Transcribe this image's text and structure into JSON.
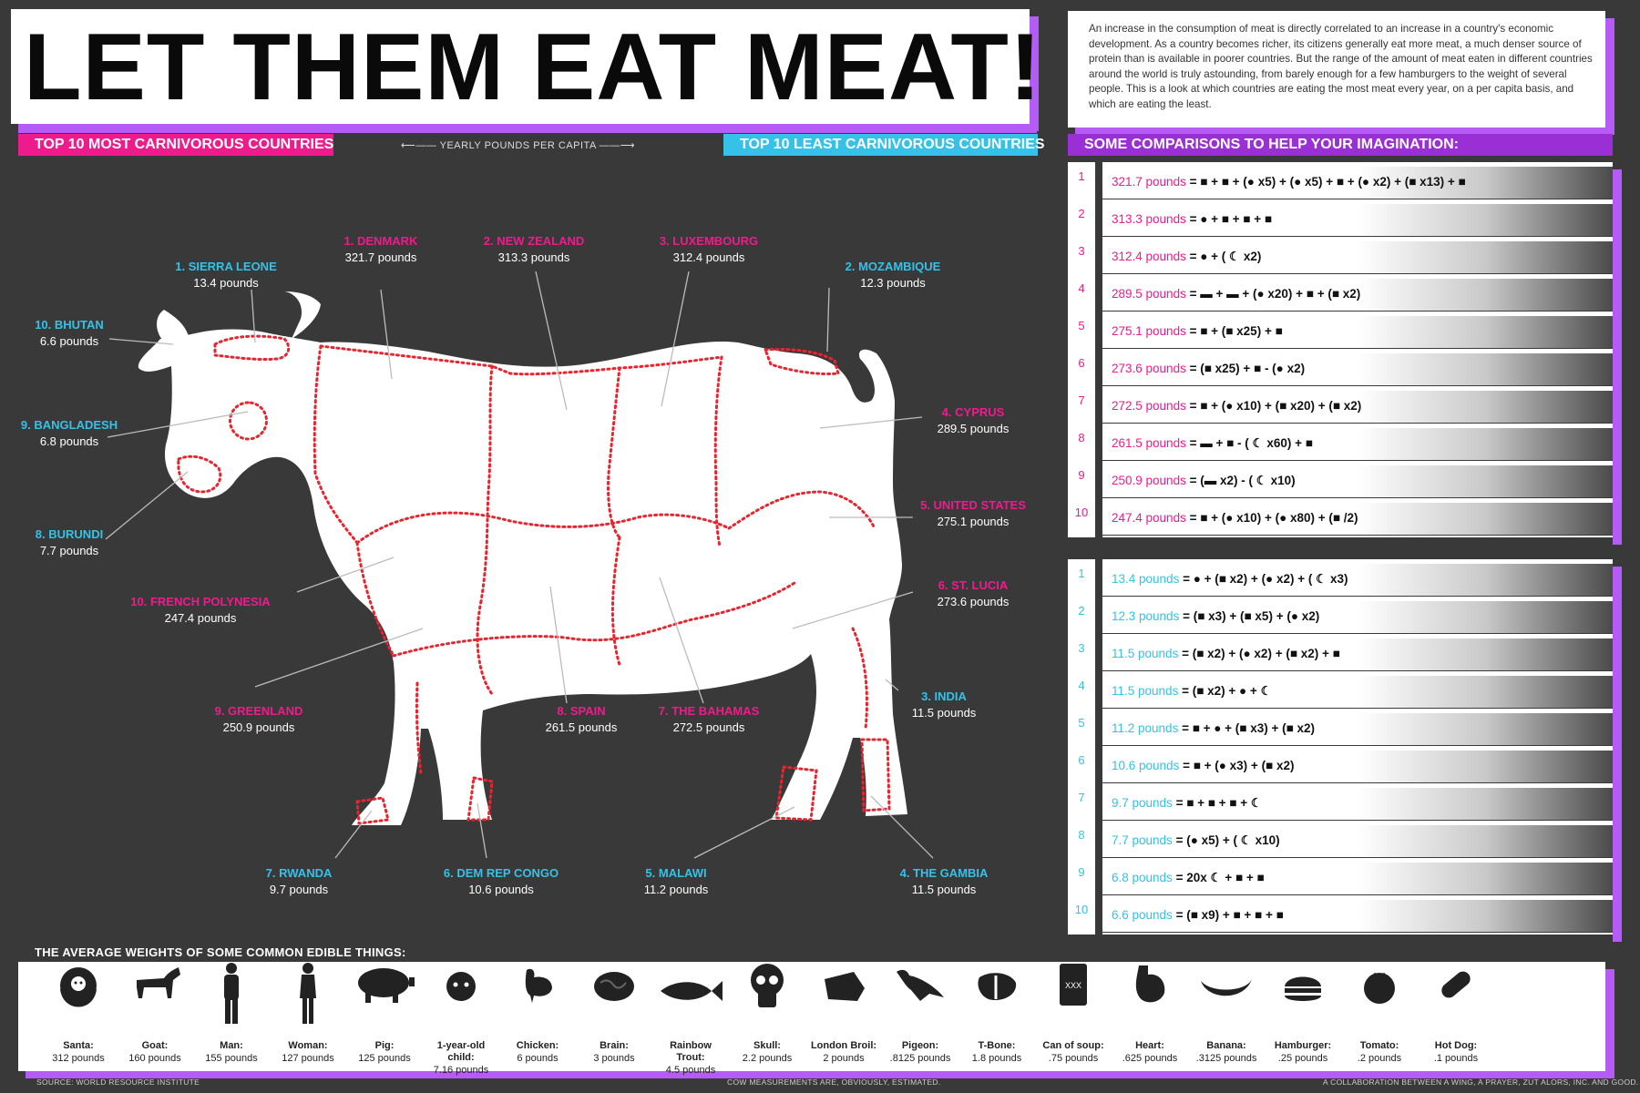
{
  "title": "LET THEM EAT MEAT!",
  "intro": "An increase in the consumption of meat is directly correlated to an increase in a country's economic development. As a country becomes richer, its citizens generally eat more meat, a much denser source of protein than is available in poorer countries. But the range of the amount of meat eaten in different countries around the world is truly astounding, from barely enough for a few hamburgers to the weight of several people. This is a look at which countries are eating the most meat every year, on a per capita basis, and which are eating the least.",
  "tags": {
    "most": "TOP 10 MOST CARNIVOROUS COUNTRIES",
    "yearly": "⟵—— YEARLY POUNDS PER CAPITA ——⟶",
    "least": "TOP 10 LEAST CARNIVOROUS COUNTRIES",
    "comparisons": "SOME COMPARISONS TO HELP YOUR IMAGINATION:"
  },
  "colors": {
    "most": "#ee1b8d",
    "least": "#35c1e8",
    "accent": "#b45cf5",
    "background": "#3a3939"
  },
  "most_carnivorous": [
    {
      "name": "1. DENMARK",
      "value": "321.7 pounds"
    },
    {
      "name": "2. NEW ZEALAND",
      "value": "313.3 pounds"
    },
    {
      "name": "3. LUXEMBOURG",
      "value": "312.4 pounds"
    },
    {
      "name": "4. CYPRUS",
      "value": "289.5 pounds"
    },
    {
      "name": "5. UNITED STATES",
      "value": "275.1 pounds"
    },
    {
      "name": "6. ST. LUCIA",
      "value": "273.6 pounds"
    },
    {
      "name": "7. THE BAHAMAS",
      "value": "272.5 pounds"
    },
    {
      "name": "8. SPAIN",
      "value": "261.5 pounds"
    },
    {
      "name": "9. GREENLAND",
      "value": "250.9 pounds"
    },
    {
      "name": "10. FRENCH POLYNESIA",
      "value": "247.4 pounds"
    }
  ],
  "least_carnivorous": [
    {
      "name": "1. SIERRA LEONE",
      "value": "13.4 pounds"
    },
    {
      "name": "2. MOZAMBIQUE",
      "value": "12.3 pounds"
    },
    {
      "name": "3. INDIA",
      "value": "11.5 pounds"
    },
    {
      "name": "4. THE GAMBIA",
      "value": "11.5 pounds"
    },
    {
      "name": "5. MALAWI",
      "value": "11.2 pounds"
    },
    {
      "name": "6. DEM REP CONGO",
      "value": "10.6 pounds"
    },
    {
      "name": "7. RWANDA",
      "value": "9.7 pounds"
    },
    {
      "name": "8. BURUNDI",
      "value": "7.7 pounds"
    },
    {
      "name": "9. BANGLADESH",
      "value": "6.8 pounds"
    },
    {
      "name": "10. BHUTAN",
      "value": "6.6 pounds"
    }
  ],
  "comparisons_most": [
    {
      "rank": "1",
      "value": "321.7 pounds",
      "formula": "= ■ + ■ + (● x5) + (● x5) + ■ + (● x2) + (■ x13) + ■"
    },
    {
      "rank": "2",
      "value": "313.3 pounds",
      "formula": "= ● + ■ + ■ + ■"
    },
    {
      "rank": "3",
      "value": "312.4 pounds",
      "formula": "= ● + ( ☾ x2)"
    },
    {
      "rank": "4",
      "value": "289.5 pounds",
      "formula": "= ▬ + ▬ + (● x20) + ■ + (■ x2)"
    },
    {
      "rank": "5",
      "value": "275.1 pounds",
      "formula": "= ■ + (■ x25) + ■"
    },
    {
      "rank": "6",
      "value": "273.6 pounds",
      "formula": "= (■ x25) + ■ - (● x2)"
    },
    {
      "rank": "7",
      "value": "272.5 pounds",
      "formula": "= ■ + (● x10) + (■ x20) + (■ x2)"
    },
    {
      "rank": "8",
      "value": "261.5 pounds",
      "formula": "= ▬ + ■ - ( ☾ x60) + ■"
    },
    {
      "rank": "9",
      "value": "250.9 pounds",
      "formula": "= (▬ x2) - ( ☾ x10)"
    },
    {
      "rank": "10",
      "value": "247.4 pounds",
      "formula": "= ■ + (● x10) + (● x80) + (■ /2)"
    }
  ],
  "comparisons_least": [
    {
      "rank": "1",
      "value": "13.4 pounds",
      "formula": "= ● + (■ x2) + (● x2) + ( ☾ x3)"
    },
    {
      "rank": "2",
      "value": "12.3 pounds",
      "formula": "= (■ x3) + (■ x5) + (● x2)"
    },
    {
      "rank": "3",
      "value": "11.5 pounds",
      "formula": "= (■ x2) + (● x2) + (■ x2) + ■"
    },
    {
      "rank": "4",
      "value": "11.5 pounds",
      "formula": "= (■ x2) + ● + ☾"
    },
    {
      "rank": "5",
      "value": "11.2 pounds",
      "formula": "= ■ + ● + (■ x3) + (■ x2)"
    },
    {
      "rank": "6",
      "value": "10.6 pounds",
      "formula": "= ■ + (● x3) + (■ x2)"
    },
    {
      "rank": "7",
      "value": "9.7 pounds",
      "formula": "= ■ + ■ + ■ + ☾"
    },
    {
      "rank": "8",
      "value": "7.7 pounds",
      "formula": "= (● x5) + ( ☾ x10)"
    },
    {
      "rank": "9",
      "value": "6.8 pounds",
      "formula": "= 20x ☾ + ■ + ■"
    },
    {
      "rank": "10",
      "value": "6.6 pounds",
      "formula": "= (■ x9) + ■ + ■ + ■"
    }
  ],
  "edibles": {
    "title": "THE AVERAGE WEIGHTS OF SOME COMMON EDIBLE THINGS:",
    "items": [
      {
        "name": "Santa:",
        "weight": "312 pounds",
        "icon": "santa-icon"
      },
      {
        "name": "Goat:",
        "weight": "160 pounds",
        "icon": "goat-icon"
      },
      {
        "name": "Man:",
        "weight": "155 pounds",
        "icon": "man-icon"
      },
      {
        "name": "Woman:",
        "weight": "127 pounds",
        "icon": "woman-icon"
      },
      {
        "name": "Pig:",
        "weight": "125 pounds",
        "icon": "pig-icon"
      },
      {
        "name": "1-year-old child:",
        "weight": "7.16 pounds",
        "icon": "child-icon"
      },
      {
        "name": "Chicken:",
        "weight": "6 pounds",
        "icon": "chicken-icon"
      },
      {
        "name": "Brain:",
        "weight": "3 pounds",
        "icon": "brain-icon"
      },
      {
        "name": "Rainbow Trout:",
        "weight": "4.5 pounds",
        "icon": "trout-icon"
      },
      {
        "name": "Skull:",
        "weight": "2.2 pounds",
        "icon": "skull-icon"
      },
      {
        "name": "London Broil:",
        "weight": "2 pounds",
        "icon": "london-broil-icon"
      },
      {
        "name": "Pigeon:",
        "weight": ".8125 pounds",
        "icon": "pigeon-icon"
      },
      {
        "name": "T-Bone:",
        "weight": "1.8 pounds",
        "icon": "t-bone-icon"
      },
      {
        "name": "Can of soup:",
        "weight": ".75 pounds",
        "icon": "soup-can-icon",
        "label": "XXX"
      },
      {
        "name": "Heart:",
        "weight": ".625 pounds",
        "icon": "heart-icon"
      },
      {
        "name": "Banana:",
        "weight": ".3125 pounds",
        "icon": "banana-icon"
      },
      {
        "name": "Hamburger:",
        "weight": ".25 pounds",
        "icon": "hamburger-icon"
      },
      {
        "name": "Tomato:",
        "weight": ".2 pounds",
        "icon": "tomato-icon"
      },
      {
        "name": "Hot Dog:",
        "weight": ".1 pounds",
        "icon": "hot-dog-icon"
      }
    ]
  },
  "footer": {
    "source": "SOURCE: WORLD RESOURCE INSTITUTE",
    "note": "COW MEASUREMENTS ARE, OBVIOUSLY, ESTIMATED.",
    "credit": "A COLLABORATION BETWEEN A WING, A PRAYER, ZUT ALORS, INC. AND GOOD."
  }
}
